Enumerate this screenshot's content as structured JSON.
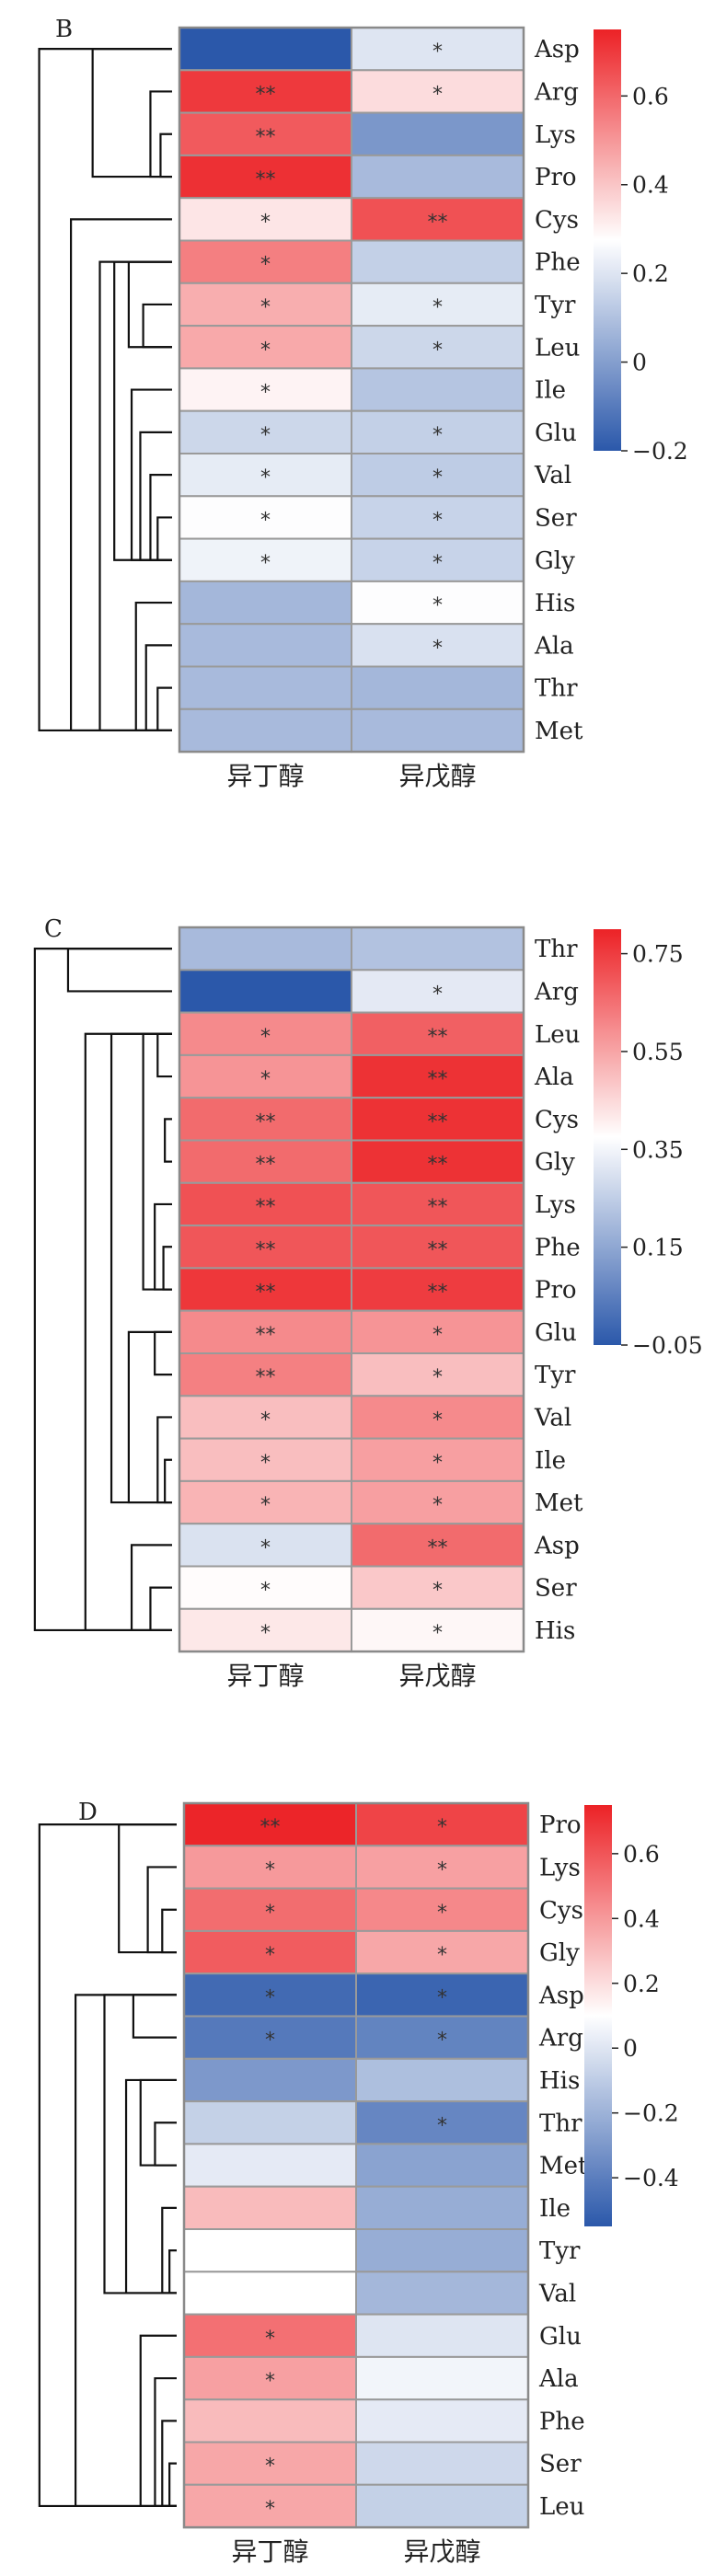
{
  "chart_data": [
    {
      "type": "heatmap",
      "panel": "B",
      "columns": [
        "异丁醇",
        "异戊醇"
      ],
      "rows": [
        "Asp",
        "Arg",
        "Lys",
        "Pro",
        "Cys",
        "Phe",
        "Tyr",
        "Leu",
        "Ile",
        "Glu",
        "Val",
        "Ser",
        "Gly",
        "His",
        "Ala",
        "Thr",
        "Met"
      ],
      "values": [
        [
          -0.2,
          0.2
        ],
        [
          0.7,
          0.35
        ],
        [
          0.63,
          -0.02
        ],
        [
          0.72,
          0.08
        ],
        [
          0.33,
          0.65
        ],
        [
          0.55,
          0.14
        ],
        [
          0.45,
          0.22
        ],
        [
          0.46,
          0.16
        ],
        [
          0.3,
          0.11
        ],
        [
          0.16,
          0.14
        ],
        [
          0.22,
          0.13
        ],
        [
          0.27,
          0.15
        ],
        [
          0.24,
          0.15
        ],
        [
          0.07,
          0.27
        ],
        [
          0.08,
          0.19
        ],
        [
          0.08,
          0.07
        ],
        [
          0.08,
          0.08
        ]
      ],
      "significance": [
        [
          "",
          "*"
        ],
        [
          "**",
          "*"
        ],
        [
          "**",
          ""
        ],
        [
          "**",
          ""
        ],
        [
          "*",
          "**"
        ],
        [
          "*",
          ""
        ],
        [
          "*",
          "*"
        ],
        [
          "*",
          "*"
        ],
        [
          "*",
          ""
        ],
        [
          "*",
          "*"
        ],
        [
          "*",
          "*"
        ],
        [
          "*",
          "*"
        ],
        [
          "*",
          "*"
        ],
        [
          "",
          "*"
        ],
        [
          "",
          "*"
        ],
        [
          "",
          ""
        ],
        [
          "",
          ""
        ]
      ],
      "colorbar": {
        "min": -0.2,
        "max": 0.75,
        "ticks": [
          -0.2,
          0,
          0.2,
          0.4,
          0.6
        ],
        "tick_labels": [
          "−0.2",
          "0",
          "0.2",
          "0.4",
          "0.6"
        ]
      }
    },
    {
      "type": "heatmap",
      "panel": "C",
      "columns": [
        "异丁醇",
        "异戊醇"
      ],
      "rows": [
        "Thr",
        "Arg",
        "Leu",
        "Ala",
        "Cys",
        "Gly",
        "Lys",
        "Phe",
        "Pro",
        "Glu",
        "Tyr",
        "Val",
        "Ile",
        "Met",
        "Asp",
        "Ser",
        "His"
      ],
      "values": [
        [
          0.2,
          0.22
        ],
        [
          -0.05,
          0.32
        ],
        [
          0.6,
          0.68
        ],
        [
          0.58,
          0.77
        ],
        [
          0.66,
          0.77
        ],
        [
          0.66,
          0.77
        ],
        [
          0.71,
          0.7
        ],
        [
          0.7,
          0.7
        ],
        [
          0.76,
          0.75
        ],
        [
          0.6,
          0.58
        ],
        [
          0.62,
          0.5
        ],
        [
          0.5,
          0.6
        ],
        [
          0.5,
          0.56
        ],
        [
          0.52,
          0.56
        ],
        [
          0.3,
          0.66
        ],
        [
          0.38,
          0.48
        ],
        [
          0.42,
          0.39
        ]
      ],
      "significance": [
        [
          "",
          ""
        ],
        [
          "",
          "*"
        ],
        [
          "*",
          "**"
        ],
        [
          "*",
          "**"
        ],
        [
          "**",
          "**"
        ],
        [
          "**",
          "**"
        ],
        [
          "**",
          "**"
        ],
        [
          "**",
          "**"
        ],
        [
          "**",
          "**"
        ],
        [
          "**",
          "*"
        ],
        [
          "**",
          "*"
        ],
        [
          "*",
          "*"
        ],
        [
          "*",
          "*"
        ],
        [
          "*",
          "*"
        ],
        [
          "*",
          "**"
        ],
        [
          "*",
          "*"
        ],
        [
          "*",
          "*"
        ]
      ],
      "colorbar": {
        "min": -0.05,
        "max": 0.8,
        "ticks": [
          -0.05,
          0.15,
          0.35,
          0.55,
          0.75
        ],
        "tick_labels": [
          "−0.05",
          "0.15",
          "0.35",
          "0.55",
          "0.75"
        ]
      }
    },
    {
      "type": "heatmap",
      "panel": "D",
      "columns": [
        "异丁醇",
        "异戊醇"
      ],
      "rows": [
        "Pro",
        "Lys",
        "Cys",
        "Gly",
        "Asp",
        "Arg",
        "His",
        "Thr",
        "Met",
        "Ile",
        "Tyr",
        "Val",
        "Glu",
        "Ala",
        "Phe",
        "Ser",
        "Leu"
      ],
      "values": [
        [
          0.74,
          0.65
        ],
        [
          0.4,
          0.38
        ],
        [
          0.53,
          0.45
        ],
        [
          0.58,
          0.36
        ],
        [
          -0.48,
          -0.5
        ],
        [
          -0.42,
          -0.38
        ],
        [
          -0.3,
          -0.15
        ],
        [
          -0.08,
          -0.37
        ],
        [
          0.02,
          -0.26
        ],
        [
          0.3,
          -0.22
        ],
        [
          0.1,
          -0.22
        ],
        [
          0.1,
          -0.18
        ],
        [
          0.52,
          0.0
        ],
        [
          0.38,
          0.06
        ],
        [
          0.3,
          0.02
        ],
        [
          0.36,
          -0.05
        ],
        [
          0.36,
          -0.08
        ]
      ],
      "significance": [
        [
          "**",
          "*"
        ],
        [
          "*",
          "*"
        ],
        [
          "*",
          "*"
        ],
        [
          "*",
          "*"
        ],
        [
          "*",
          "*"
        ],
        [
          "*",
          "*"
        ],
        [
          "",
          ""
        ],
        [
          "",
          "*"
        ],
        [
          "",
          ""
        ],
        [
          "",
          ""
        ],
        [
          "",
          ""
        ],
        [
          "",
          ""
        ],
        [
          "*",
          ""
        ],
        [
          "*",
          ""
        ],
        [
          "",
          ""
        ],
        [
          "*",
          ""
        ],
        [
          "*",
          ""
        ]
      ],
      "colorbar": {
        "min": -0.55,
        "max": 0.75,
        "ticks": [
          -0.4,
          -0.2,
          0,
          0.2,
          0.4,
          0.6
        ],
        "tick_labels": [
          "−0.4",
          "−0.2",
          "0",
          "0.2",
          "0.4",
          "0.6"
        ]
      }
    }
  ]
}
